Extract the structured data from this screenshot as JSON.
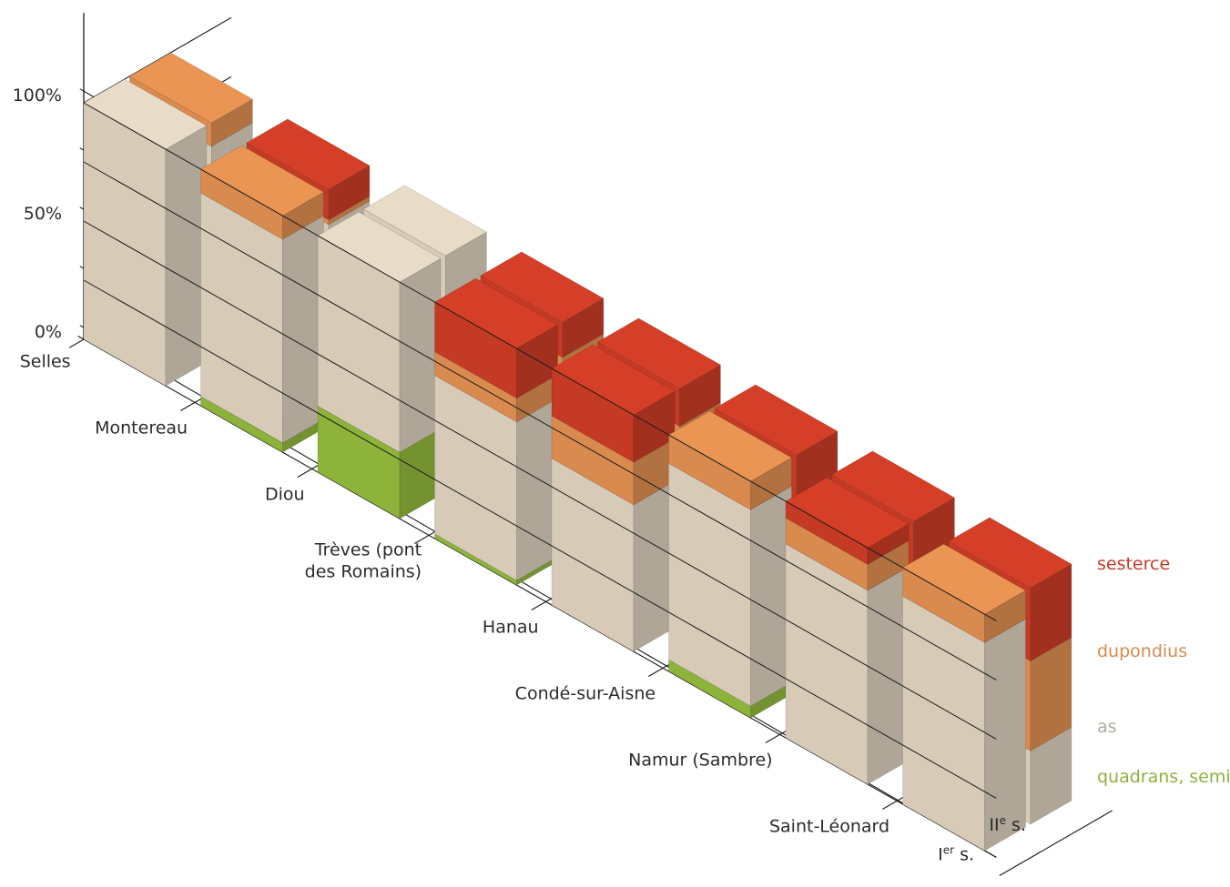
{
  "chart_data": {
    "type": "bar",
    "subtype": "stacked-3d-percent",
    "categories": [
      "Selles",
      "Montereau",
      "Diou",
      "Trèves (pont des Romains)",
      "Hanau",
      "Condé-sur-Aisne",
      "Namur (Sambre)",
      "Saint-Léonard"
    ],
    "category_lines": [
      [
        "Selles"
      ],
      [
        "Montereau"
      ],
      [
        "Diou"
      ],
      [
        "Trèves (pont",
        "des Romains)"
      ],
      [
        "Hanau"
      ],
      [
        "Condé-sur-Aisne"
      ],
      [
        "Namur (Sambre)"
      ],
      [
        "Saint-Léonard"
      ]
    ],
    "periods": [
      {
        "id": "I",
        "roman": "I",
        "sup": "er",
        "suffix": " s."
      },
      {
        "id": "II",
        "roman": "II",
        "sup": "e",
        "suffix": " s."
      }
    ],
    "series": [
      {
        "name": "quadrans, semis",
        "key": "quadrans",
        "color": "#8db33a"
      },
      {
        "name": "as",
        "key": "as",
        "color": "#d7cbb8"
      },
      {
        "name": "dupondius",
        "key": "dupondius",
        "color": "#d98a4e"
      },
      {
        "name": "sesterce",
        "key": "sesterce",
        "color": "#c53a24"
      }
    ],
    "values": {
      "I": [
        {
          "quadrans": 0,
          "as": 100,
          "dupondius": 0,
          "sesterce": 0
        },
        {
          "quadrans": 4,
          "as": 86,
          "dupondius": 10,
          "sesterce": 0
        },
        {
          "quadrans": 28,
          "as": 72,
          "dupondius": 0,
          "sesterce": 0
        },
        {
          "quadrans": 2,
          "as": 67,
          "dupondius": 10,
          "sesterce": 21
        },
        {
          "quadrans": 0,
          "as": 62,
          "dupondius": 18,
          "sesterce": 20
        },
        {
          "quadrans": 5,
          "as": 83,
          "dupondius": 12,
          "sesterce": 0
        },
        {
          "quadrans": 0,
          "as": 82,
          "dupondius": 11,
          "sesterce": 7
        },
        {
          "quadrans": 0,
          "as": 88,
          "dupondius": 12,
          "sesterce": 0
        }
      ],
      "II": [
        {
          "quadrans": 0,
          "as": 90,
          "dupondius": 10,
          "sesterce": 0
        },
        {
          "quadrans": 0,
          "as": 85,
          "dupondius": 2,
          "sesterce": 13
        },
        {
          "quadrans": 0,
          "as": 100,
          "dupondius": 0,
          "sesterce": 0
        },
        {
          "quadrans": 1,
          "as": 78,
          "dupondius": 6,
          "sesterce": 15
        },
        {
          "quadrans": 0,
          "as": 74,
          "dupondius": 10,
          "sesterce": 16
        },
        {
          "quadrans": 0,
          "as": 34,
          "dupondius": 22,
          "sesterce": 44
        },
        {
          "quadrans": 0,
          "as": 33,
          "dupondius": 20,
          "sesterce": 47
        },
        {
          "quadrans": 0,
          "as": 31,
          "dupondius": 38,
          "sesterce": 31
        }
      ]
    },
    "y_ticks": [
      "0%",
      "50%",
      "100%"
    ],
    "ylim": [
      0,
      100
    ],
    "legend_position": "right",
    "title": "",
    "xlabel": "",
    "ylabel": ""
  }
}
